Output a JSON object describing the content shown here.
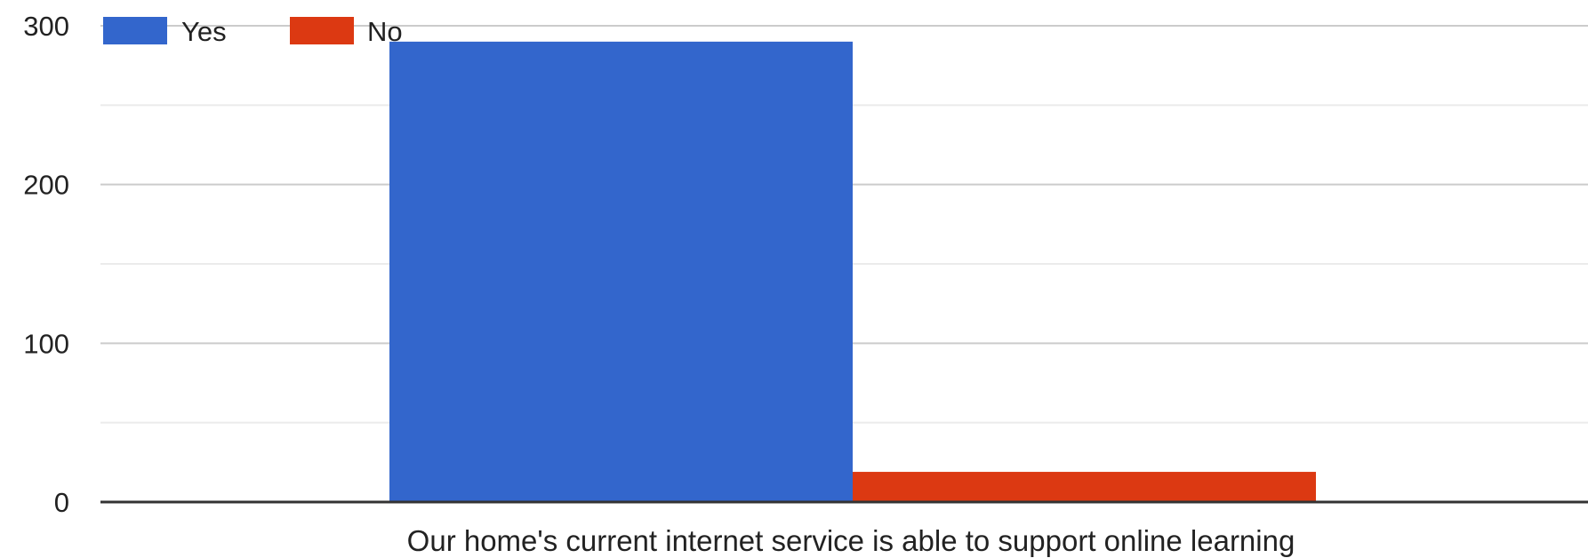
{
  "chart_data": {
    "type": "bar",
    "categories": [
      "Our home's current internet service is able to support online learning"
    ],
    "series": [
      {
        "name": "Yes",
        "values": [
          290
        ],
        "color": "#3366cc"
      },
      {
        "name": "No",
        "values": [
          19
        ],
        "color": "#dc3912"
      }
    ],
    "yticks": [
      0,
      100,
      200,
      300
    ],
    "ylim": [
      0,
      300
    ],
    "title": "",
    "xlabel": "",
    "ylabel": "",
    "legend_position": "top-left",
    "grid": true
  }
}
